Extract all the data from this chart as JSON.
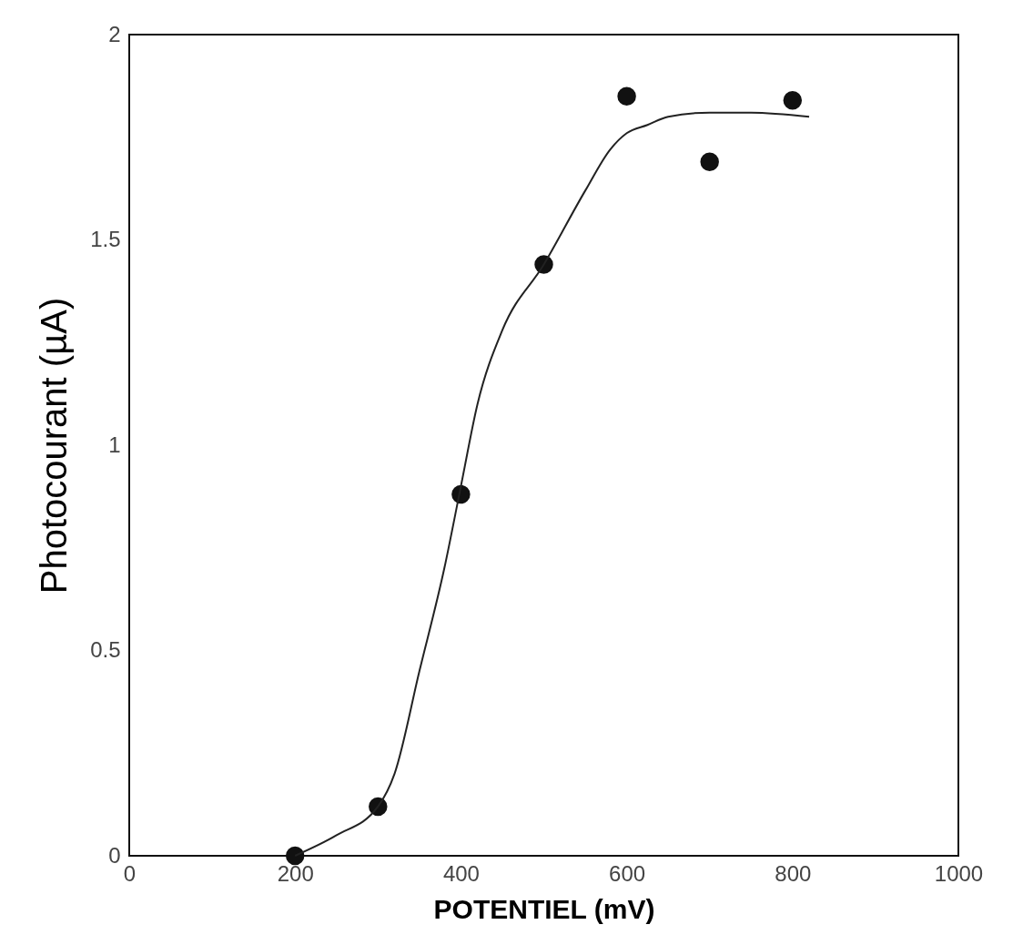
{
  "chart_data": {
    "type": "scatter",
    "xlabel": "POTENTIEL (mV)",
    "ylabel": "Photocourant (µA)",
    "xlim": [
      0,
      1000
    ],
    "xticks": [
      0,
      200,
      400,
      600,
      800,
      1000
    ],
    "ylim": [
      0,
      2
    ],
    "yticks": [
      0,
      0.5,
      1,
      1.5,
      2
    ],
    "grid": false,
    "series": [
      {
        "color": "#111111",
        "marker": "circle",
        "x": [
          200,
          300,
          400,
          500,
          600,
          700,
          800
        ],
        "values": [
          0.0,
          0.12,
          0.88,
          1.44,
          1.85,
          1.69,
          1.84
        ]
      },
      {
        "type": "line",
        "color": "#222222",
        "marker": "none",
        "line_style": "solid",
        "x": [
          200,
          250,
          300,
          320,
          350,
          380,
          400,
          420,
          450,
          500,
          550,
          580,
          600,
          625,
          650,
          700,
          750,
          820
        ],
        "values": [
          0.0,
          0.05,
          0.12,
          0.2,
          0.45,
          0.7,
          0.9,
          1.1,
          1.28,
          1.44,
          1.62,
          1.72,
          1.76,
          1.78,
          1.8,
          1.81,
          1.81,
          1.8
        ]
      }
    ]
  }
}
